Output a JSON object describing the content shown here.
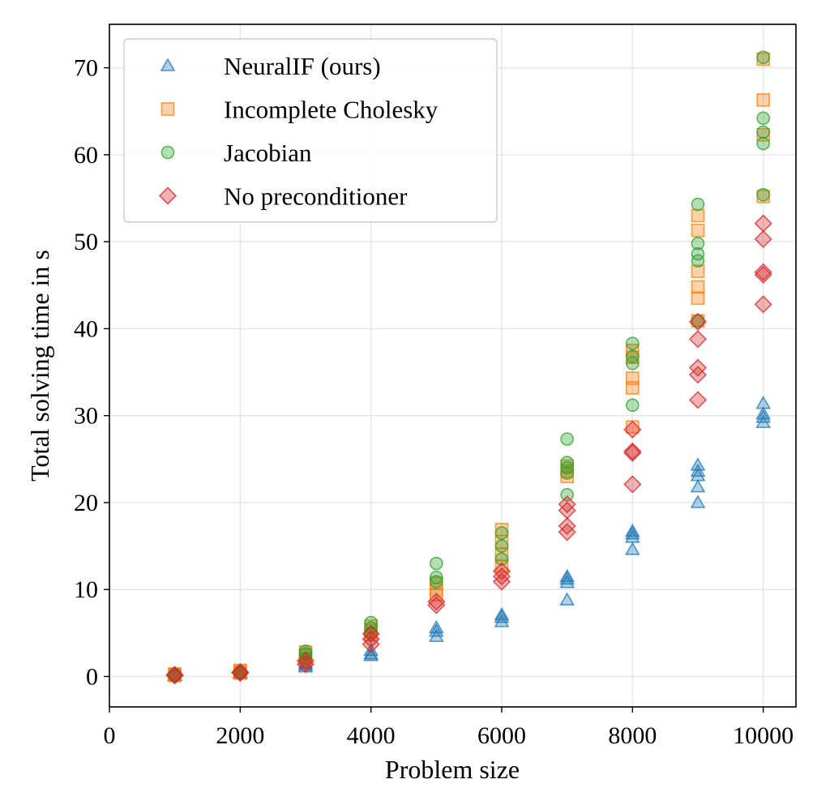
{
  "chart_data": {
    "type": "scatter",
    "title": "",
    "xlabel": "Problem size",
    "ylabel": "Total solving time in s",
    "xlim": [
      0,
      10500
    ],
    "ylim": [
      -3.5,
      75
    ],
    "xticks": [
      0,
      2000,
      4000,
      6000,
      8000,
      10000
    ],
    "yticks": [
      0,
      10,
      20,
      30,
      40,
      50,
      60,
      70
    ],
    "grid": true,
    "legend_position": "top-left",
    "series": [
      {
        "name": "NeuralIF (ours)",
        "marker": "triangle",
        "color": "#1f77b4",
        "points": [
          [
            1000,
            0.1
          ],
          [
            1000,
            0.15
          ],
          [
            1000,
            0.2
          ],
          [
            2000,
            0.3
          ],
          [
            2000,
            0.4
          ],
          [
            2000,
            0.5
          ],
          [
            3000,
            1.1
          ],
          [
            3000,
            1.3
          ],
          [
            3000,
            1.5
          ],
          [
            4000,
            2.4
          ],
          [
            4000,
            2.6
          ],
          [
            4000,
            3.0
          ],
          [
            5000,
            4.6
          ],
          [
            5000,
            5.2
          ],
          [
            5000,
            5.6
          ],
          [
            6000,
            6.3
          ],
          [
            6000,
            6.8
          ],
          [
            6000,
            7.1
          ],
          [
            7000,
            8.8
          ],
          [
            7000,
            10.8
          ],
          [
            7000,
            11.2
          ],
          [
            7000,
            11.5
          ],
          [
            8000,
            14.6
          ],
          [
            8000,
            16.0
          ],
          [
            8000,
            16.4
          ],
          [
            8000,
            16.7
          ],
          [
            9000,
            20.0
          ],
          [
            9000,
            21.8
          ],
          [
            9000,
            23.1
          ],
          [
            9000,
            23.6
          ],
          [
            9000,
            24.3
          ],
          [
            10000,
            29.2
          ],
          [
            10000,
            29.8
          ],
          [
            10000,
            30.2
          ],
          [
            10000,
            31.4
          ]
        ]
      },
      {
        "name": "Incomplete Cholesky",
        "marker": "square",
        "color": "#ff7f0e",
        "points": [
          [
            1000,
            0.1
          ],
          [
            1000,
            0.2
          ],
          [
            1000,
            0.3
          ],
          [
            2000,
            0.4
          ],
          [
            2000,
            0.6
          ],
          [
            2000,
            0.7
          ],
          [
            3000,
            2.0
          ],
          [
            3000,
            2.4
          ],
          [
            3000,
            2.8
          ],
          [
            4000,
            4.8
          ],
          [
            4000,
            5.3
          ],
          [
            4000,
            5.8
          ],
          [
            5000,
            9.4
          ],
          [
            5000,
            10.0
          ],
          [
            5000,
            10.7
          ],
          [
            6000,
            12.7
          ],
          [
            6000,
            14.0
          ],
          [
            6000,
            15.5
          ],
          [
            6000,
            16.9
          ],
          [
            7000,
            23.0
          ],
          [
            7000,
            23.6
          ],
          [
            7000,
            24.2
          ],
          [
            8000,
            28.7
          ],
          [
            8000,
            33.2
          ],
          [
            8000,
            34.3
          ],
          [
            8000,
            36.7
          ],
          [
            8000,
            37.5
          ],
          [
            9000,
            40.9
          ],
          [
            9000,
            43.5
          ],
          [
            9000,
            44.8
          ],
          [
            9000,
            46.6
          ],
          [
            9000,
            51.3
          ],
          [
            9000,
            53.0
          ],
          [
            10000,
            55.2
          ],
          [
            10000,
            62.3
          ],
          [
            10000,
            66.3
          ],
          [
            10000,
            71.0
          ]
        ]
      },
      {
        "name": "Jacobian",
        "marker": "circle",
        "color": "#2ca02c",
        "points": [
          [
            1000,
            0.1
          ],
          [
            1000,
            0.2
          ],
          [
            2000,
            0.4
          ],
          [
            2000,
            0.5
          ],
          [
            3000,
            2.1
          ],
          [
            3000,
            2.6
          ],
          [
            3000,
            2.9
          ],
          [
            4000,
            5.0
          ],
          [
            4000,
            5.6
          ],
          [
            4000,
            6.2
          ],
          [
            5000,
            10.9
          ],
          [
            5000,
            11.4
          ],
          [
            5000,
            13.0
          ],
          [
            6000,
            13.5
          ],
          [
            6000,
            15.0
          ],
          [
            6000,
            16.5
          ],
          [
            7000,
            20.9
          ],
          [
            7000,
            23.4
          ],
          [
            7000,
            24.0
          ],
          [
            7000,
            24.6
          ],
          [
            7000,
            27.3
          ],
          [
            8000,
            31.2
          ],
          [
            8000,
            36.0
          ],
          [
            8000,
            36.8
          ],
          [
            8000,
            38.3
          ],
          [
            9000,
            40.9
          ],
          [
            9000,
            47.8
          ],
          [
            9000,
            48.6
          ],
          [
            9000,
            49.8
          ],
          [
            9000,
            54.3
          ],
          [
            10000,
            55.4
          ],
          [
            10000,
            61.3
          ],
          [
            10000,
            62.6
          ],
          [
            10000,
            64.2
          ],
          [
            10000,
            71.2
          ]
        ]
      },
      {
        "name": "No preconditioner",
        "marker": "diamond",
        "color": "#d62728",
        "points": [
          [
            1000,
            0.1
          ],
          [
            1000,
            0.2
          ],
          [
            2000,
            0.4
          ],
          [
            2000,
            0.5
          ],
          [
            3000,
            1.4
          ],
          [
            3000,
            1.8
          ],
          [
            4000,
            3.7
          ],
          [
            4000,
            4.3
          ],
          [
            4000,
            4.9
          ],
          [
            5000,
            8.2
          ],
          [
            5000,
            8.6
          ],
          [
            6000,
            10.9
          ],
          [
            6000,
            11.5
          ],
          [
            6000,
            12.1
          ],
          [
            7000,
            16.6
          ],
          [
            7000,
            17.3
          ],
          [
            7000,
            19.1
          ],
          [
            7000,
            19.8
          ],
          [
            8000,
            22.1
          ],
          [
            8000,
            25.7
          ],
          [
            8000,
            25.9
          ],
          [
            8000,
            28.4
          ],
          [
            9000,
            31.8
          ],
          [
            9000,
            34.7
          ],
          [
            9000,
            35.5
          ],
          [
            9000,
            38.8
          ],
          [
            9000,
            40.8
          ],
          [
            10000,
            42.8
          ],
          [
            10000,
            46.2
          ],
          [
            10000,
            46.5
          ],
          [
            10000,
            50.3
          ],
          [
            10000,
            52.1
          ]
        ]
      }
    ]
  }
}
